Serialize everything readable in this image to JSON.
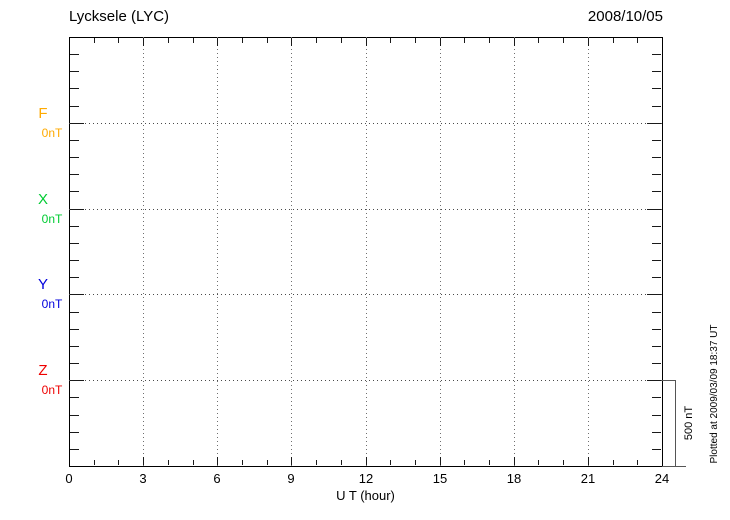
{
  "header": {
    "station_title": "Lycksele (LYC)",
    "date": "2008/10/05"
  },
  "axis": {
    "x_title": "U T (hour)"
  },
  "scale_bar": {
    "label": "500 nT"
  },
  "footer_note": "Plotted at 2009/03/09 18:37 UT",
  "chart_data": {
    "type": "line",
    "title": "Lycksele (LYC)",
    "date": "2008/10/05",
    "xlabel": "U T (hour)",
    "x_range_hours": [
      0,
      24
    ],
    "x_major_ticks": [
      0,
      3,
      6,
      9,
      12,
      15,
      18,
      21,
      24
    ],
    "x_minor_tick_step_hours": 1,
    "grid": "dotted",
    "legend_position": "left",
    "y_rows": 5,
    "y_minor_ticks_per_interval": 5,
    "series": [
      {
        "name": "F",
        "baseline_label": "0nT",
        "color": "#FFAA00",
        "x": [],
        "values": []
      },
      {
        "name": "X",
        "baseline_label": "0nT",
        "color": "#00CC33",
        "x": [],
        "values": []
      },
      {
        "name": "Y",
        "baseline_label": "0nT",
        "color": "#0000DD",
        "x": [],
        "values": []
      },
      {
        "name": "Z",
        "baseline_label": "0nT",
        "color": "#EE0000",
        "x": [],
        "values": []
      }
    ],
    "y_scale_bar": {
      "label": "500 nT",
      "value": 500,
      "unit": "nT"
    },
    "annotations": [
      "Plotted at 2009/03/09 18:37 UT"
    ]
  }
}
